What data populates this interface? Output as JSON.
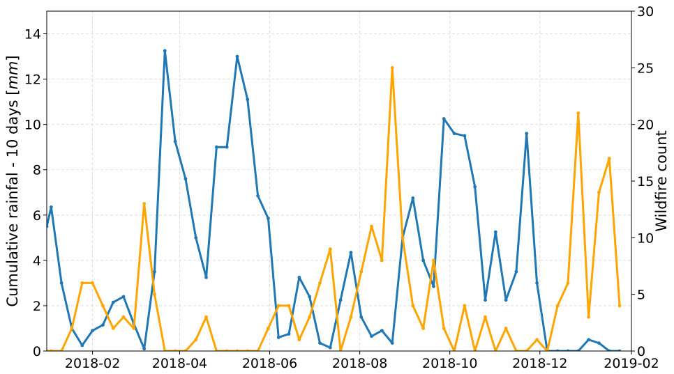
{
  "chart_data": {
    "type": "line",
    "xlabel": "",
    "ylabel_left": "Cumulative rainfal - 10 days [mm]",
    "ylabel_left_main": "Cumulative rainfal - 10 days [",
    "ylabel_left_unit": "mm",
    "ylabel_left_close": "]",
    "ylabel_right": "Wildfire count",
    "xlim": [
      "2018-01-01",
      "2019-02-01"
    ],
    "ylim_left": [
      0,
      15
    ],
    "ylim_right": [
      0,
      30
    ],
    "x_tick_labels": [
      "2018-02",
      "2018-04",
      "2018-06",
      "2018-08",
      "2018-10",
      "2018-12",
      "2019-02"
    ],
    "x_tick_dates": [
      "2018-02-01",
      "2018-04-01",
      "2018-06-01",
      "2018-08-01",
      "2018-10-01",
      "2018-12-01",
      "2019-02-01"
    ],
    "y_left_ticks": [
      "0",
      "2",
      "4",
      "6",
      "8",
      "10",
      "12",
      "14"
    ],
    "y_right_ticks": [
      "0",
      "5",
      "10",
      "15",
      "20",
      "25",
      "30"
    ],
    "grid": true,
    "x": [
      "2018-01-01",
      "2018-01-04",
      "2018-01-09",
      "2018-01-14",
      "2018-01-19",
      "2018-01-24",
      "2018-01-29",
      "2018-02-03",
      "2018-02-08",
      "2018-02-13",
      "2018-02-18",
      "2018-02-23",
      "2018-02-28",
      "2018-03-05",
      "2018-03-10",
      "2018-03-15",
      "2018-03-20",
      "2018-03-25",
      "2018-03-30",
      "2018-04-04",
      "2018-04-09",
      "2018-04-14",
      "2018-04-19",
      "2018-04-24",
      "2018-04-29",
      "2018-05-04",
      "2018-05-09",
      "2018-05-14",
      "2018-05-19",
      "2018-05-24",
      "2018-05-29",
      "2018-06-03",
      "2018-06-08",
      "2018-06-13",
      "2018-06-18",
      "2018-06-23",
      "2018-06-28",
      "2018-07-03",
      "2018-07-08",
      "2018-07-13",
      "2018-07-18",
      "2018-07-23",
      "2018-07-28",
      "2018-08-02",
      "2018-08-07",
      "2018-08-12",
      "2018-08-17",
      "2018-08-22",
      "2018-08-27",
      "2018-09-01",
      "2018-09-06",
      "2018-09-11",
      "2018-09-16",
      "2018-09-21",
      "2018-09-26",
      "2018-10-01",
      "2018-10-06",
      "2018-10-11",
      "2018-10-16",
      "2018-10-21",
      "2018-10-26",
      "2018-10-31",
      "2018-11-05",
      "2018-11-10",
      "2018-11-15",
      "2018-11-20",
      "2018-11-25",
      "2018-11-30",
      "2018-12-05",
      "2018-12-10",
      "2018-12-15",
      "2018-12-20",
      "2018-12-25",
      "2018-12-30",
      "2019-01-04",
      "2019-01-09",
      "2019-01-14",
      "2019-01-19",
      "2019-01-24",
      "2019-01-29"
    ],
    "series": [
      {
        "name": "",
        "axis": "left",
        "color": "#1f77b4",
        "points": [
          [
            "2018-01-01",
            5.5
          ],
          [
            "2018-01-04",
            6.35
          ],
          [
            "2018-01-11",
            3.0
          ],
          [
            "2018-01-18",
            1.0
          ],
          [
            "2018-01-25",
            0.25
          ],
          [
            "2018-02-01",
            0.9
          ],
          [
            "2018-02-08",
            1.15
          ],
          [
            "2018-02-15",
            2.15
          ],
          [
            "2018-02-22",
            2.4
          ],
          [
            "2018-03-01",
            1.2
          ],
          [
            "2018-03-08",
            0.1
          ],
          [
            "2018-03-15",
            3.5
          ],
          [
            "2018-03-22",
            13.25
          ],
          [
            "2018-03-29",
            9.25
          ],
          [
            "2018-04-05",
            7.6
          ],
          [
            "2018-04-12",
            5.0
          ],
          [
            "2018-04-19",
            3.25
          ],
          [
            "2018-04-26",
            9.0
          ],
          [
            "2018-05-03",
            9.0
          ],
          [
            "2018-05-10",
            13.0
          ],
          [
            "2018-05-17",
            11.1
          ],
          [
            "2018-05-24",
            6.85
          ],
          [
            "2018-05-31",
            5.85
          ],
          [
            "2018-06-07",
            0.6
          ],
          [
            "2018-06-14",
            0.75
          ],
          [
            "2018-06-21",
            3.25
          ],
          [
            "2018-06-28",
            2.4
          ],
          [
            "2018-07-05",
            0.35
          ],
          [
            "2018-07-12",
            0.15
          ],
          [
            "2018-07-19",
            2.25
          ],
          [
            "2018-07-26",
            4.35
          ],
          [
            "2018-08-02",
            1.5
          ],
          [
            "2018-08-09",
            0.65
          ],
          [
            "2018-08-16",
            0.9
          ],
          [
            "2018-08-23",
            0.35
          ],
          [
            "2018-08-30",
            5.0
          ],
          [
            "2018-09-06",
            6.75
          ],
          [
            "2018-09-13",
            4.0
          ],
          [
            "2018-09-20",
            2.85
          ],
          [
            "2018-09-27",
            10.25
          ],
          [
            "2018-10-04",
            9.6
          ],
          [
            "2018-10-11",
            9.5
          ],
          [
            "2018-10-18",
            7.25
          ],
          [
            "2018-10-25",
            2.25
          ],
          [
            "2018-11-01",
            5.25
          ],
          [
            "2018-11-08",
            2.25
          ],
          [
            "2018-11-15",
            3.5
          ],
          [
            "2018-11-22",
            9.6
          ],
          [
            "2018-11-29",
            3.0
          ],
          [
            "2018-12-06",
            0.0
          ],
          [
            "2018-12-13",
            0.0
          ],
          [
            "2018-12-20",
            0.0
          ],
          [
            "2018-12-27",
            0.0
          ],
          [
            "2019-01-03",
            0.5
          ],
          [
            "2019-01-10",
            0.35
          ],
          [
            "2019-01-17",
            0.0
          ],
          [
            "2019-01-24",
            0.0
          ]
        ]
      },
      {
        "name": "",
        "axis": "right",
        "color": "#ffa500",
        "points": [
          [
            "2018-01-01",
            0
          ],
          [
            "2018-01-04",
            0
          ],
          [
            "2018-01-11",
            0
          ],
          [
            "2018-01-18",
            2
          ],
          [
            "2018-01-25",
            6
          ],
          [
            "2018-02-01",
            6
          ],
          [
            "2018-02-08",
            4
          ],
          [
            "2018-02-15",
            2
          ],
          [
            "2018-02-22",
            3
          ],
          [
            "2018-03-01",
            2
          ],
          [
            "2018-03-08",
            13
          ],
          [
            "2018-03-15",
            5
          ],
          [
            "2018-03-22",
            0
          ],
          [
            "2018-03-29",
            0
          ],
          [
            "2018-04-05",
            0
          ],
          [
            "2018-04-12",
            1
          ],
          [
            "2018-04-19",
            3
          ],
          [
            "2018-04-26",
            0
          ],
          [
            "2018-05-03",
            0
          ],
          [
            "2018-05-10",
            0
          ],
          [
            "2018-05-17",
            0
          ],
          [
            "2018-05-24",
            0
          ],
          [
            "2018-05-31",
            2
          ],
          [
            "2018-06-07",
            4
          ],
          [
            "2018-06-14",
            4
          ],
          [
            "2018-06-21",
            1
          ],
          [
            "2018-06-28",
            3
          ],
          [
            "2018-07-05",
            6
          ],
          [
            "2018-07-12",
            9
          ],
          [
            "2018-07-19",
            0
          ],
          [
            "2018-07-26",
            3
          ],
          [
            "2018-08-02",
            7
          ],
          [
            "2018-08-09",
            11
          ],
          [
            "2018-08-16",
            8
          ],
          [
            "2018-08-23",
            25
          ],
          [
            "2018-08-30",
            10
          ],
          [
            "2018-09-06",
            4
          ],
          [
            "2018-09-13",
            2
          ],
          [
            "2018-09-20",
            8
          ],
          [
            "2018-09-27",
            2
          ],
          [
            "2018-10-04",
            0
          ],
          [
            "2018-10-11",
            4
          ],
          [
            "2018-10-18",
            0
          ],
          [
            "2018-10-25",
            3
          ],
          [
            "2018-11-01",
            0
          ],
          [
            "2018-11-08",
            2
          ],
          [
            "2018-11-15",
            0
          ],
          [
            "2018-11-22",
            0
          ],
          [
            "2018-11-29",
            1
          ],
          [
            "2018-12-06",
            0
          ],
          [
            "2018-12-13",
            4
          ],
          [
            "2018-12-20",
            6
          ],
          [
            "2018-12-27",
            21
          ],
          [
            "2019-01-03",
            3
          ],
          [
            "2019-01-10",
            14
          ],
          [
            "2019-01-17",
            17
          ],
          [
            "2019-01-24",
            4
          ]
        ]
      }
    ]
  }
}
